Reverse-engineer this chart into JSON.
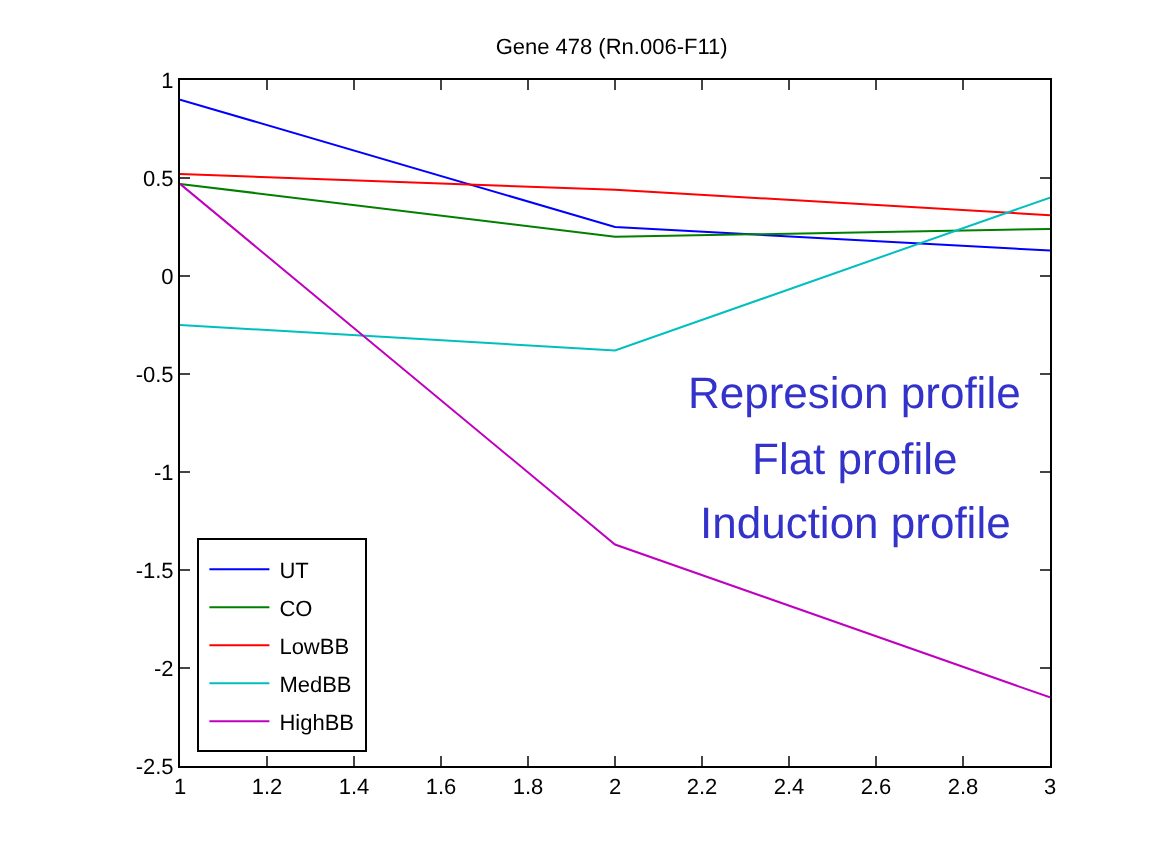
{
  "chart_data": {
    "type": "line",
    "title": "Gene 478 (Rn.006-F11)",
    "x": [
      1,
      2,
      3
    ],
    "series": [
      {
        "name": "UT",
        "color": "#0000ff",
        "values": [
          0.9,
          0.25,
          0.13
        ]
      },
      {
        "name": "CO",
        "color": "#007f00",
        "values": [
          0.47,
          0.2,
          0.24
        ]
      },
      {
        "name": "LowBB",
        "color": "#ff0000",
        "values": [
          0.52,
          0.44,
          0.31
        ]
      },
      {
        "name": "MedBB",
        "color": "#00bfbf",
        "values": [
          -0.25,
          -0.38,
          0.4
        ]
      },
      {
        "name": "HighBB",
        "color": "#bf00bf",
        "values": [
          0.47,
          -1.37,
          -2.15
        ]
      }
    ],
    "xlim": [
      1,
      3
    ],
    "xticks": [
      1,
      {
        "value": 1.2,
        "label": "1.2"
      },
      {
        "value": 1.4,
        "label": "1.4"
      },
      {
        "value": 1.6,
        "label": "1.6"
      },
      {
        "value": 1.8,
        "label": "1.8"
      },
      2,
      {
        "value": 2.2,
        "label": "2.2"
      },
      {
        "value": 2.4,
        "label": "2.4"
      },
      {
        "value": 2.6,
        "label": "2.6"
      },
      {
        "value": 2.8,
        "label": "2.8"
      },
      3
    ],
    "ylim": [
      -2.5,
      1
    ],
    "yticks": [
      -2.5,
      -2,
      -1.5,
      -1,
      -0.5,
      0,
      0.5,
      1
    ],
    "annotations": [
      "Represion profile",
      "Flat profile",
      "Induction profile"
    ],
    "legend": "bottom left",
    "grid": false,
    "marker": "none",
    "line_style": "solid"
  }
}
